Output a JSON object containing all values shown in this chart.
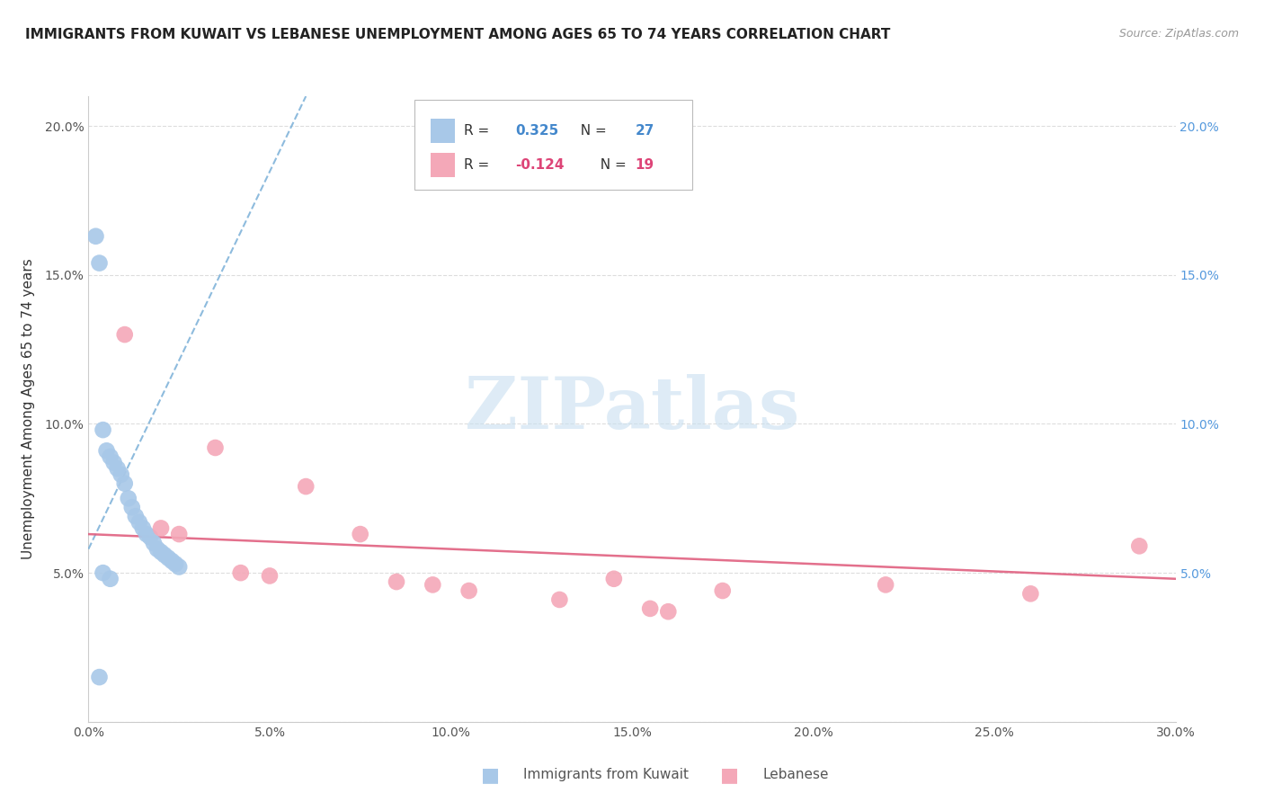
{
  "title": "IMMIGRANTS FROM KUWAIT VS LEBANESE UNEMPLOYMENT AMONG AGES 65 TO 74 YEARS CORRELATION CHART",
  "source": "Source: ZipAtlas.com",
  "ylabel": "Unemployment Among Ages 65 to 74 years",
  "xlim": [
    0.0,
    0.3
  ],
  "ylim": [
    0.0,
    0.21
  ],
  "xticks": [
    0.0,
    0.05,
    0.1,
    0.15,
    0.2,
    0.25,
    0.3
  ],
  "yticks": [
    0.0,
    0.05,
    0.1,
    0.15,
    0.2
  ],
  "xtick_labels": [
    "0.0%",
    "5.0%",
    "10.0%",
    "15.0%",
    "20.0%",
    "25.0%",
    "30.0%"
  ],
  "ytick_labels": [
    "",
    "5.0%",
    "10.0%",
    "15.0%",
    "20.0%"
  ],
  "ytick_labels_right": [
    "5.0%",
    "10.0%",
    "15.0%",
    "20.0%"
  ],
  "kuwait_R": 0.325,
  "kuwait_N": 27,
  "lebanese_R": -0.124,
  "lebanese_N": 19,
  "kuwait_color": "#a8c8e8",
  "lebanese_color": "#f4a8b8",
  "kuwait_line_color": "#7ab0d8",
  "lebanese_line_color": "#e06080",
  "kuwait_scatter_x": [
    0.002,
    0.003,
    0.004,
    0.005,
    0.006,
    0.007,
    0.008,
    0.009,
    0.01,
    0.011,
    0.012,
    0.013,
    0.014,
    0.015,
    0.016,
    0.017,
    0.018,
    0.019,
    0.02,
    0.021,
    0.022,
    0.023,
    0.024,
    0.025,
    0.003,
    0.004,
    0.006
  ],
  "kuwait_scatter_y": [
    0.163,
    0.154,
    0.098,
    0.091,
    0.089,
    0.087,
    0.085,
    0.083,
    0.08,
    0.075,
    0.072,
    0.069,
    0.067,
    0.065,
    0.063,
    0.062,
    0.06,
    0.058,
    0.057,
    0.056,
    0.055,
    0.054,
    0.053,
    0.052,
    0.015,
    0.05,
    0.048
  ],
  "lebanese_scatter_x": [
    0.01,
    0.02,
    0.025,
    0.035,
    0.042,
    0.05,
    0.06,
    0.075,
    0.085,
    0.095,
    0.105,
    0.13,
    0.145,
    0.155,
    0.16,
    0.175,
    0.22,
    0.26,
    0.29
  ],
  "lebanese_scatter_y": [
    0.13,
    0.065,
    0.063,
    0.092,
    0.05,
    0.049,
    0.079,
    0.063,
    0.047,
    0.046,
    0.044,
    0.041,
    0.048,
    0.038,
    0.037,
    0.044,
    0.046,
    0.043,
    0.059
  ],
  "kuwait_trend_x": [
    0.0,
    0.06
  ],
  "kuwait_trend_y": [
    0.058,
    0.21
  ],
  "lebanese_trend_x": [
    0.0,
    0.3
  ],
  "lebanese_trend_y": [
    0.063,
    0.048
  ],
  "watermark_text": "ZIPatlas",
  "watermark_color": "#c8dff0",
  "background_color": "#ffffff",
  "grid_color": "#dddddd"
}
